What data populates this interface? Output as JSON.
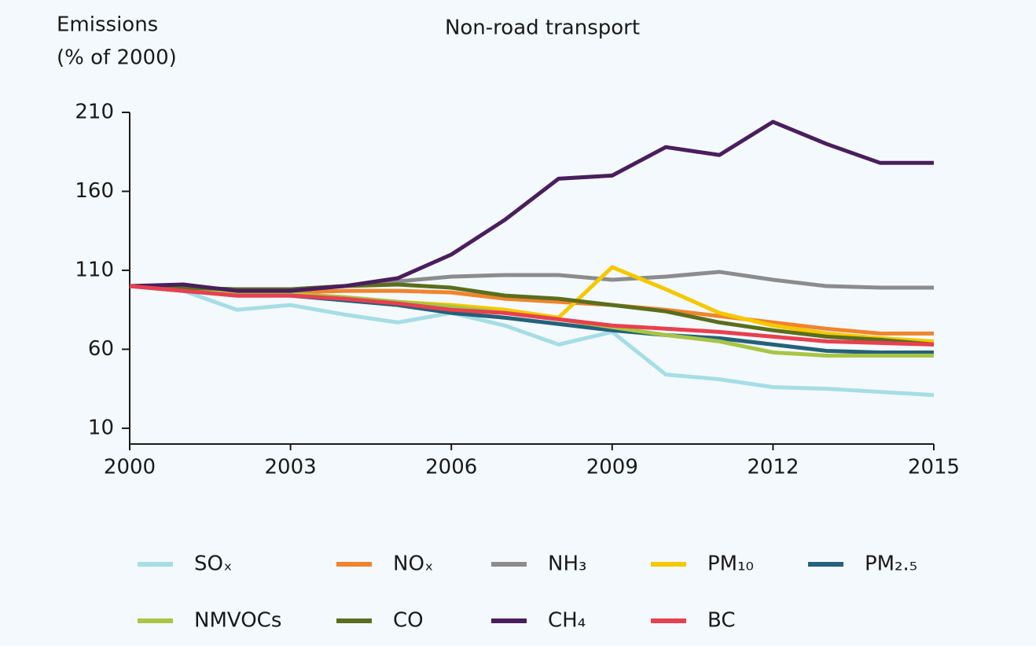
{
  "chart_data": {
    "type": "line",
    "title": "Non-road transport",
    "y_label": [
      "Emissions",
      "(% of 2000)"
    ],
    "x": [
      2000,
      2001,
      2002,
      2003,
      2004,
      2005,
      2006,
      2007,
      2008,
      2009,
      2010,
      2011,
      2012,
      2013,
      2014,
      2015
    ],
    "xlim": [
      2000,
      2015
    ],
    "xticks": [
      2000,
      2003,
      2006,
      2009,
      2012,
      2015
    ],
    "ylim": [
      0,
      210
    ],
    "yticks": [
      10,
      60,
      110,
      160,
      210
    ],
    "series": [
      {
        "name": "SOₓ",
        "color": "#a6dde6",
        "values": [
          100,
          97,
          85,
          88,
          82,
          77,
          83,
          75,
          63,
          71,
          44,
          41,
          36,
          35,
          33,
          31
        ]
      },
      {
        "name": "NOₓ",
        "color": "#f0842c",
        "values": [
          100,
          98,
          96,
          96,
          97,
          97,
          96,
          92,
          90,
          88,
          85,
          81,
          77,
          73,
          70,
          70
        ]
      },
      {
        "name": "NH₃",
        "color": "#8c8c8c",
        "values": [
          100,
          99,
          98,
          98,
          100,
          103,
          106,
          107,
          107,
          104,
          106,
          109,
          104,
          100,
          99,
          99
        ]
      },
      {
        "name": "PM₁₀",
        "color": "#f5c800",
        "values": [
          100,
          98,
          95,
          95,
          93,
          90,
          88,
          85,
          80,
          112,
          98,
          83,
          75,
          70,
          67,
          65
        ]
      },
      {
        "name": "PM₂.₅",
        "color": "#24617a",
        "values": [
          100,
          97,
          94,
          94,
          91,
          88,
          83,
          80,
          76,
          72,
          69,
          67,
          63,
          59,
          58,
          58
        ]
      },
      {
        "name": "NMVOCs",
        "color": "#a8c545",
        "values": [
          100,
          98,
          95,
          95,
          93,
          90,
          87,
          83,
          79,
          74,
          69,
          65,
          58,
          56,
          56,
          56
        ]
      },
      {
        "name": "CO",
        "color": "#5a6e1e",
        "values": [
          100,
          99,
          98,
          98,
          100,
          101,
          99,
          94,
          92,
          88,
          84,
          77,
          72,
          68,
          66,
          63
        ]
      },
      {
        "name": "CH₄",
        "color": "#4a1e5e",
        "values": [
          100,
          101,
          97,
          97,
          100,
          105,
          120,
          142,
          168,
          170,
          188,
          183,
          204,
          190,
          178,
          178
        ]
      },
      {
        "name": "BC",
        "color": "#e8404f",
        "values": [
          100,
          97,
          94,
          94,
          92,
          89,
          85,
          83,
          79,
          75,
          73,
          71,
          68,
          65,
          64,
          63
        ]
      }
    ]
  }
}
